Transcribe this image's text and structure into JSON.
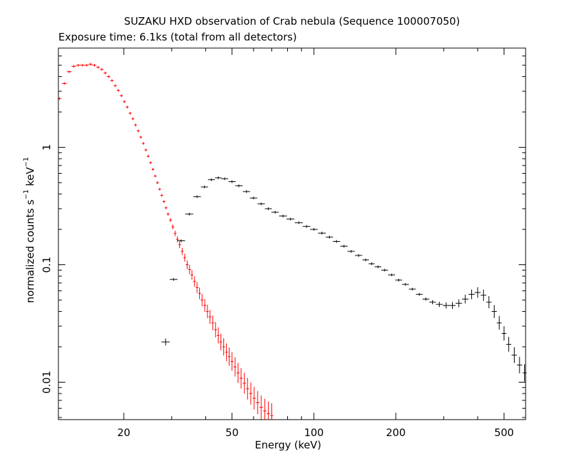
{
  "chart_data": {
    "type": "scatter",
    "title": "SUZAKU HXD observation of Crab nebula (Sequence 100007050)",
    "subtitle": "Exposure time: 6.1ks (total from all detectors)",
    "xlabel": "Energy (keV)",
    "ylabel": {
      "base": "normalized counts s",
      "exp1": "−1",
      "mid": " keV",
      "exp2": "−1"
    },
    "xscale": "log",
    "yscale": "log",
    "xlim": [
      11.5,
      600
    ],
    "ylim": [
      0.0048,
      7
    ],
    "grid": false,
    "xticks": [
      {
        "value": 20,
        "label": "20"
      },
      {
        "value": 50,
        "label": "50"
      },
      {
        "value": 100,
        "label": "100"
      },
      {
        "value": 200,
        "label": "200"
      },
      {
        "value": 500,
        "label": "500"
      }
    ],
    "yticks": [
      {
        "value": 0.01,
        "label": "0.01"
      },
      {
        "value": 0.1,
        "label": "0.1"
      },
      {
        "value": 1,
        "label": "1"
      }
    ],
    "series": [
      {
        "color": "#ff0000",
        "points": [
          [
            11.6,
            2.6
          ],
          [
            12.1,
            3.5
          ],
          [
            12.6,
            4.4
          ],
          [
            13.1,
            4.9
          ],
          [
            13.6,
            5.0
          ],
          [
            14.1,
            5.0
          ],
          [
            14.6,
            5.0
          ],
          [
            15.1,
            5.1
          ],
          [
            15.6,
            5.0
          ],
          [
            16.1,
            4.8
          ],
          [
            16.6,
            4.6
          ],
          [
            17.1,
            4.3
          ],
          [
            17.6,
            4.0
          ],
          [
            18.1,
            3.7
          ],
          [
            18.6,
            3.35
          ],
          [
            19.1,
            3.05
          ],
          [
            19.6,
            2.75
          ],
          [
            20.1,
            2.45
          ],
          [
            20.6,
            2.2
          ],
          [
            21.1,
            1.95
          ],
          [
            21.6,
            1.75
          ],
          [
            22.1,
            1.55
          ],
          [
            22.6,
            1.38
          ],
          [
            23.1,
            1.22
          ],
          [
            23.6,
            1.08
          ],
          [
            24.1,
            0.95
          ],
          [
            24.6,
            0.84
          ],
          [
            25.1,
            0.74
          ],
          [
            25.6,
            0.65
          ],
          [
            26.1,
            0.57
          ],
          [
            26.6,
            0.5
          ],
          [
            27.1,
            0.44
          ],
          [
            27.6,
            0.39
          ],
          [
            28.1,
            0.345
          ],
          [
            28.6,
            0.305
          ],
          [
            29.1,
            0.27
          ],
          [
            29.7,
            0.24
          ],
          [
            30.3,
            0.21
          ],
          [
            30.9,
            0.185
          ],
          [
            31.5,
            0.165
          ],
          [
            32.1,
            0.148
          ],
          [
            32.8,
            0.13
          ],
          [
            33.5,
            0.115
          ],
          [
            34.2,
            0.1
          ],
          [
            34.9,
            0.091
          ],
          [
            35.6,
            0.082
          ],
          [
            36.4,
            0.072
          ],
          [
            37.2,
            0.064
          ],
          [
            38.0,
            0.057
          ],
          [
            38.8,
            0.05
          ],
          [
            39.7,
            0.045
          ],
          [
            40.6,
            0.04
          ],
          [
            41.5,
            0.036
          ],
          [
            42.5,
            0.032
          ],
          [
            43.5,
            0.028
          ],
          [
            44.5,
            0.025
          ],
          [
            45.5,
            0.022
          ],
          [
            46.6,
            0.02
          ],
          [
            47.7,
            0.018
          ],
          [
            48.8,
            0.0165
          ],
          [
            50,
            0.015
          ],
          [
            51.3,
            0.0135
          ],
          [
            52.6,
            0.012
          ],
          [
            54,
            0.0108
          ],
          [
            55.5,
            0.0098
          ],
          [
            57,
            0.0088
          ],
          [
            58.6,
            0.008
          ],
          [
            60.3,
            0.0073
          ],
          [
            62.1,
            0.0067
          ],
          [
            64,
            0.0061
          ],
          [
            66,
            0.0057
          ],
          [
            68,
            0.0054
          ],
          [
            70,
            0.0052
          ]
        ]
      },
      {
        "color": "#000000",
        "points": [
          [
            28.5,
            0.022
          ],
          [
            30.5,
            0.075
          ],
          [
            32.5,
            0.16
          ],
          [
            34.8,
            0.27
          ],
          [
            37.2,
            0.38
          ],
          [
            39.6,
            0.46
          ],
          [
            42,
            0.53
          ],
          [
            44.5,
            0.55
          ],
          [
            47,
            0.54
          ],
          [
            50,
            0.51
          ],
          [
            53,
            0.47
          ],
          [
            56.5,
            0.42
          ],
          [
            60,
            0.37
          ],
          [
            64,
            0.33
          ],
          [
            68,
            0.3
          ],
          [
            72,
            0.28
          ],
          [
            77,
            0.26
          ],
          [
            82,
            0.245
          ],
          [
            88,
            0.228
          ],
          [
            94,
            0.212
          ],
          [
            100,
            0.2
          ],
          [
            107,
            0.186
          ],
          [
            114,
            0.172
          ],
          [
            121,
            0.158
          ],
          [
            129,
            0.144
          ],
          [
            137,
            0.13
          ],
          [
            146,
            0.12
          ],
          [
            155,
            0.11
          ],
          [
            163,
            0.102
          ],
          [
            172,
            0.096
          ],
          [
            182,
            0.09
          ],
          [
            193,
            0.082
          ],
          [
            205,
            0.074
          ],
          [
            217,
            0.068
          ],
          [
            230,
            0.062
          ],
          [
            244,
            0.056
          ],
          [
            258,
            0.051
          ],
          [
            273,
            0.048
          ],
          [
            289,
            0.046
          ],
          [
            306,
            0.045
          ],
          [
            323,
            0.045
          ],
          [
            341,
            0.047
          ],
          [
            360,
            0.051
          ],
          [
            380,
            0.056
          ],
          [
            400,
            0.058
          ],
          [
            420,
            0.055
          ],
          [
            440,
            0.048
          ],
          [
            460,
            0.04
          ],
          [
            480,
            0.032
          ],
          [
            500,
            0.026
          ],
          [
            520,
            0.021
          ],
          [
            545,
            0.017
          ],
          [
            570,
            0.014
          ],
          [
            595,
            0.012
          ]
        ]
      }
    ]
  }
}
